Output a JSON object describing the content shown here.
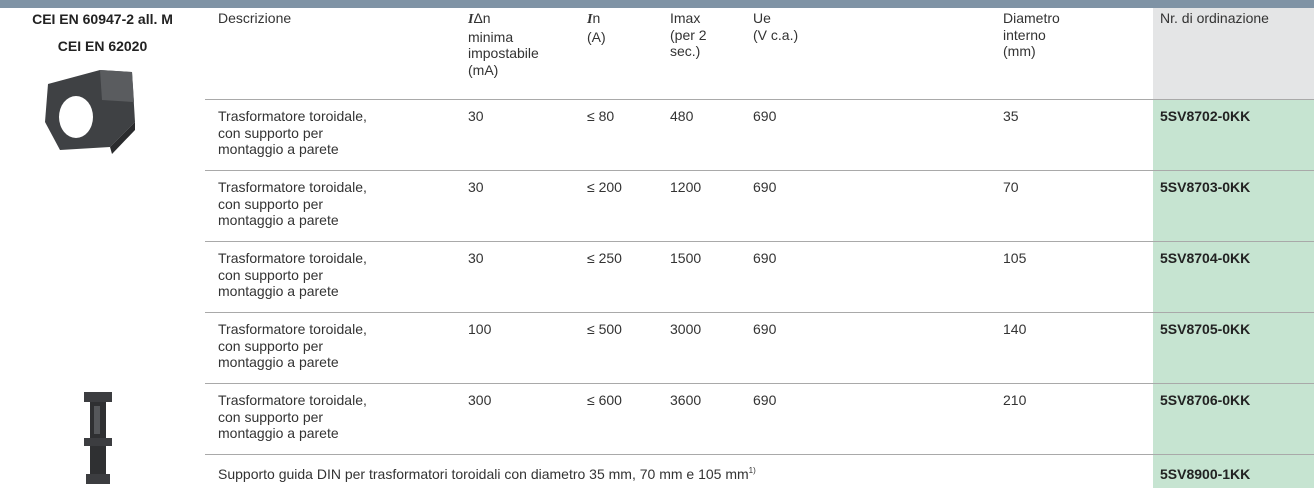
{
  "standards": [
    "CEI EN 60947-2 all. M",
    "CEI EN 62020"
  ],
  "header": {
    "cols": [
      {
        "lines": [
          "Descrizione"
        ]
      },
      {
        "symbol": "I",
        "lines": [
          "Δn",
          "minima",
          "impostabile",
          "(mA)"
        ]
      },
      {
        "symbol": "I",
        "lines": [
          "n",
          "(A)"
        ]
      },
      {
        "lines": [
          "Imax",
          "(per 2",
          "sec.)"
        ]
      },
      {
        "lines": [
          "Ue",
          "(V c.a.)"
        ]
      },
      {
        "lines": [
          "Diametro",
          "interno",
          "(mm)"
        ]
      },
      {
        "lines": [
          "Nr. di ordinazione"
        ]
      }
    ]
  },
  "rows": [
    {
      "description": [
        "Trasformatore toroidale,",
        "con supporto per",
        "montaggio a parete"
      ],
      "cells": [
        "30",
        "≤ 80",
        "480",
        "690",
        "35"
      ],
      "order": "5SV8702-0KK"
    },
    {
      "description": [
        "Trasformatore toroidale,",
        "con supporto per",
        "montaggio a parete"
      ],
      "cells": [
        "30",
        "≤ 200",
        "1200",
        "690",
        "70"
      ],
      "order": "5SV8703-0KK"
    },
    {
      "description": [
        "Trasformatore toroidale,",
        "con supporto per",
        "montaggio a parete"
      ],
      "cells": [
        "30",
        "≤ 250",
        "1500",
        "690",
        "105"
      ],
      "order": "5SV8704-0KK"
    },
    {
      "description": [
        "Trasformatore toroidale,",
        "con supporto per",
        "montaggio a parete"
      ],
      "cells": [
        "100",
        "≤ 500",
        "3000",
        "690",
        "140"
      ],
      "order": "5SV8705-0KK"
    },
    {
      "description": [
        "Trasformatore toroidale,",
        "con supporto per",
        "montaggio a parete"
      ],
      "cells": [
        "300",
        "≤ 600",
        "3600",
        "690",
        "210"
      ],
      "order": "5SV8706-0KK"
    }
  ],
  "final_row": {
    "text": "Supporto guida DIN per trasformatori toroidali con diametro 35 mm, 70 mm e 105 mm",
    "footnote": "1)",
    "order": "5SV8900-1KK"
  }
}
